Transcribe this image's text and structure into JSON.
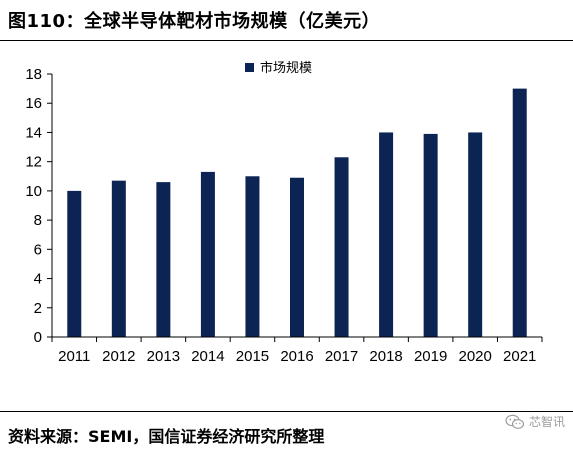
{
  "title": "图110：全球半导体靶材市场规模（亿美元）",
  "source": "资料来源：SEMI，国信证券经济研究所整理",
  "watermark": {
    "text": "芯智讯",
    "icon": "wechat-icon"
  },
  "colors": {
    "bar": "#0c2454",
    "axis": "#000000"
  },
  "chart_data": {
    "type": "bar",
    "categories": [
      "2011",
      "2012",
      "2013",
      "2014",
      "2015",
      "2016",
      "2017",
      "2018",
      "2019",
      "2020",
      "2021"
    ],
    "series": [
      {
        "name": "市场规模",
        "values": [
          10.0,
          10.7,
          10.6,
          11.3,
          11.0,
          10.9,
          12.3,
          14.0,
          13.9,
          14.0,
          17.0
        ]
      }
    ],
    "ylim": [
      0,
      18
    ],
    "yticks": [
      0,
      2,
      4,
      6,
      8,
      10,
      12,
      14,
      16,
      18
    ],
    "grid": false,
    "legend": "top-center",
    "xlabel": "",
    "ylabel": ""
  }
}
